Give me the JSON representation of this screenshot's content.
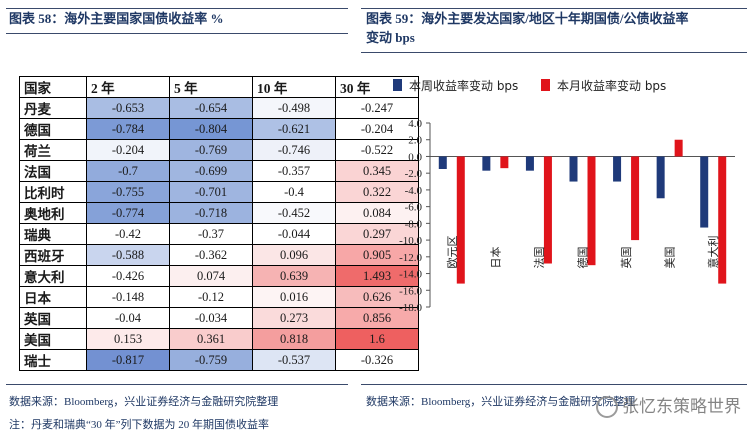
{
  "left_panel": {
    "title": "图表 58：海外主要国家国债收益率 %",
    "source": "数据来源：Bloomberg，兴业证券经济与金融研究院整理",
    "note": "注：丹麦和瑞典“30 年”列下数据为 20 年期国债收益率"
  },
  "right_panel": {
    "title_line1": "图表 59：海外主要发达国家/地区十年期国债/公债收益率",
    "title_line2": "变动 bps",
    "source": "数据来源：Bloomberg，兴业证券经济与金融研究院整理"
  },
  "watermark": "张忆东策略世界",
  "colors": {
    "navy": "#1f3a7a",
    "red": "#e0141b",
    "title": "#1f3864"
  },
  "yield_table": {
    "headers": [
      "国家",
      "2 年",
      "5 年",
      "10 年",
      "30 年"
    ],
    "rows": [
      {
        "country": "丹麦",
        "values": [
          "-0.653",
          "-0.654",
          "-0.498",
          "-0.247"
        ],
        "colors": [
          "#a9bde3",
          "#a9bde3",
          "#f4f6fb",
          "#ffffff"
        ]
      },
      {
        "country": "德国",
        "values": [
          "-0.784",
          "-0.804",
          "-0.621",
          "-0.204"
        ],
        "colors": [
          "#7c9ad6",
          "#7696d4",
          "#aec1e5",
          "#ffffff"
        ]
      },
      {
        "country": "荷兰",
        "values": [
          "-0.204",
          "-0.769",
          "-0.746",
          "-0.522"
        ],
        "colors": [
          "#f1f4fa",
          "#9fb5e0",
          "#eef1f9",
          "#ffffff"
        ]
      },
      {
        "country": "法国",
        "values": [
          "-0.7",
          "-0.699",
          "-0.357",
          "0.345"
        ],
        "colors": [
          "#92abdc",
          "#a0b6e0",
          "#ffffff",
          "#fad3d3"
        ]
      },
      {
        "country": "比利时",
        "values": [
          "-0.755",
          "-0.701",
          "-0.4",
          "0.322"
        ],
        "colors": [
          "#8aa5da",
          "#9fb5e0",
          "#ffffff",
          "#fad5d5"
        ]
      },
      {
        "country": "奥地利",
        "values": [
          "-0.774",
          "-0.718",
          "-0.452",
          "0.084"
        ],
        "colors": [
          "#85a1d8",
          "#9cb3df",
          "#f8f9fc",
          "#fdf1f1"
        ]
      },
      {
        "country": "瑞典",
        "values": [
          "-0.42",
          "-0.37",
          "-0.044",
          "0.297"
        ],
        "colors": [
          "#ffffff",
          "#ffffff",
          "#ffffff",
          "#fad6d6"
        ]
      },
      {
        "country": "西班牙",
        "values": [
          "-0.588",
          "-0.362",
          "0.096",
          "0.905"
        ],
        "colors": [
          "#c9d5ee",
          "#ffffff",
          "#fbe6e6",
          "#f7a7a7"
        ]
      },
      {
        "country": "意大利",
        "values": [
          "-0.426",
          "0.074",
          "0.639",
          "1.493"
        ],
        "colors": [
          "#ffffff",
          "#fcefef",
          "#f6b3b3",
          "#ef6b6b"
        ]
      },
      {
        "country": "日本",
        "values": [
          "-0.148",
          "-0.12",
          "0.016",
          "0.626"
        ],
        "colors": [
          "#ffffff",
          "#ffffff",
          "#fdf4f4",
          "#f7bcbc"
        ]
      },
      {
        "country": "英国",
        "values": [
          "-0.04",
          "-0.034",
          "0.273",
          "0.856"
        ],
        "colors": [
          "#ffffff",
          "#ffffff",
          "#fadbdb",
          "#f7aaaa"
        ]
      },
      {
        "country": "美国",
        "values": [
          "0.153",
          "0.361",
          "0.818",
          "1.6"
        ],
        "colors": [
          "#fdeaea",
          "#f9cccc",
          "#f49e9e",
          "#ee6060"
        ]
      },
      {
        "country": "瑞士",
        "values": [
          "-0.817",
          "-0.759",
          "-0.537",
          "-0.326"
        ],
        "colors": [
          "#7391d2",
          "#97afdd",
          "#dde5f4",
          "#ffffff"
        ]
      }
    ]
  },
  "chart_data": {
    "type": "bar",
    "categories": [
      "欧元区",
      "日本",
      "法国",
      "德国",
      "英国",
      "美国",
      "意大利"
    ],
    "series": [
      {
        "name": "本周收益率变动 bps",
        "color": "#1f3a7a",
        "values": [
          -1.5,
          -1.7,
          -1.7,
          -3.0,
          -3.0,
          -5.0,
          -8.5
        ]
      },
      {
        "name": "本月收益率变动 bps",
        "color": "#e0141b",
        "values": [
          -15.2,
          -1.4,
          -12.8,
          -13.0,
          -10.0,
          2.0,
          -15.2
        ]
      }
    ],
    "ylim": [
      -18,
      4
    ],
    "yticks": [
      "4.0",
      "2.0",
      "0.0",
      "-2.0",
      "-4.0",
      "-6.0",
      "-8.0",
      "-10.0",
      "-12.0",
      "-14.0",
      "-16.0",
      "-18.0"
    ],
    "title": "",
    "xlabel": "",
    "ylabel": "",
    "legend_position": "top"
  }
}
